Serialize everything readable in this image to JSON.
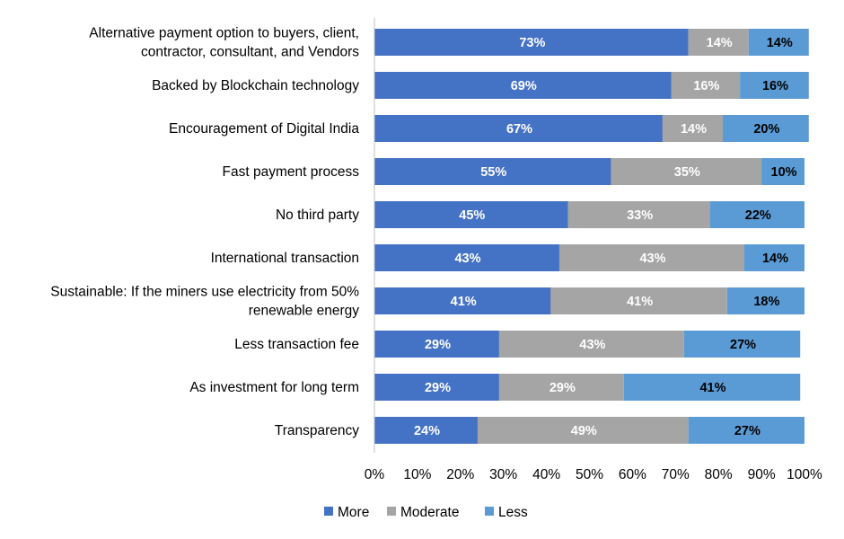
{
  "chart_data": {
    "type": "bar",
    "orientation": "horizontal",
    "stacked": true,
    "categories": [
      "Alternative payment option to buyers, client,\ncontractor, consultant, and Vendors",
      "Backed by Blockchain technology",
      "Encouragement of Digital India",
      "Fast payment process",
      "No third party",
      "International transaction",
      "Sustainable: If the miners use electricity from 50%\nrenewable energy",
      "Less transaction fee",
      "As investment for long term",
      "Transparency"
    ],
    "series": [
      {
        "name": "More",
        "color": "#4472C4",
        "label_color": "#ffffff",
        "values": [
          73,
          69,
          67,
          55,
          45,
          43,
          41,
          29,
          29,
          24
        ]
      },
      {
        "name": "Moderate",
        "color": "#A5A5A5",
        "label_color": "#ffffff",
        "values": [
          14,
          16,
          14,
          35,
          33,
          43,
          41,
          43,
          29,
          49
        ]
      },
      {
        "name": "Less",
        "color": "#5B9BD5",
        "label_color": "#000000",
        "values": [
          14,
          16,
          20,
          10,
          22,
          14,
          18,
          27,
          41,
          27
        ]
      }
    ],
    "value_suffix": "%",
    "xlim": [
      0,
      100
    ],
    "xticks": [
      "0%",
      "10%",
      "20%",
      "30%",
      "40%",
      "50%",
      "60%",
      "70%",
      "80%",
      "90%",
      "100%"
    ],
    "grid": false,
    "legend_position": "bottom"
  }
}
